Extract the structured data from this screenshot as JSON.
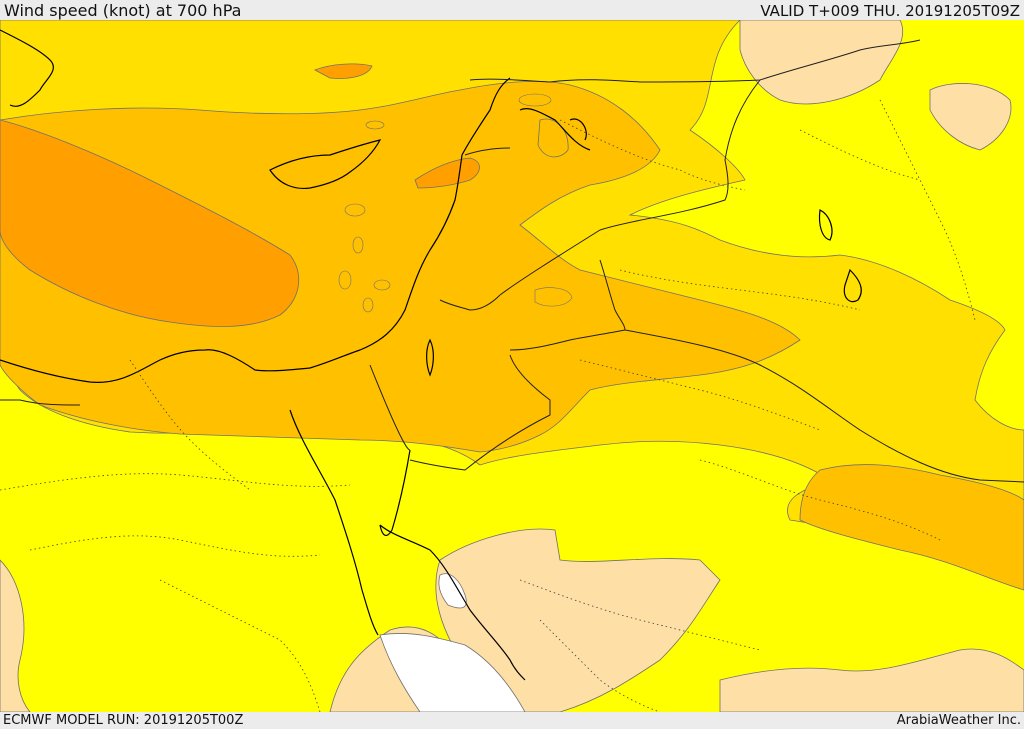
{
  "header": {
    "title": "Wind speed (knot) at 700 hPa",
    "valid": "VALID T+009 THU. 20191205T09Z"
  },
  "footer": {
    "model_run": "ECMWF MODEL RUN: 20191205T00Z",
    "credit": "ArabiaWeather Inc."
  },
  "map": {
    "field": "wind speed",
    "level": "700 hPa",
    "units": "knot",
    "region": "Eastern Mediterranean / Middle East",
    "colors": {
      "calm": "#ffffff",
      "band_low": "#fedfa6",
      "band_mid": "#ffff00",
      "band_upper": "#ffe000",
      "band_high": "#ffc000",
      "band_top": "#ffa000",
      "contour": "#707070",
      "coastline": "#000000",
      "border": "#202020"
    }
  }
}
